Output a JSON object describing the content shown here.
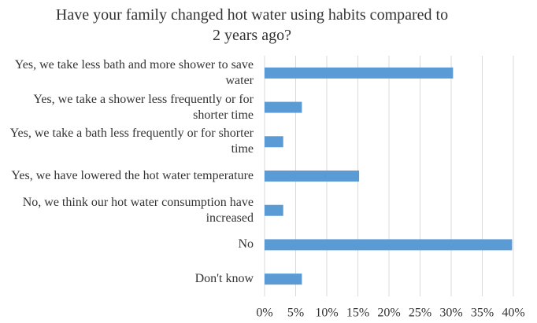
{
  "chart_data": {
    "type": "hbar",
    "title": "Have your family changed hot water using habits compared to 2 years ago?",
    "categories": [
      "Yes, we take less bath and more shower to save water",
      "Yes, we take a shower less frequently or for shorter time",
      "Yes, we take a bath less frequently or for shorter time",
      "Yes, we have lowered the hot water temperature",
      "No, we think our hot water consumption have increased",
      "No",
      "Don't know"
    ],
    "values": [
      30.3,
      6,
      3,
      15.2,
      3,
      39.8,
      6
    ],
    "color": "#5b9bd5",
    "xlim": [
      0,
      40
    ],
    "xticks": [
      {
        "value": 0,
        "label": "0%"
      },
      {
        "value": 5,
        "label": "5%"
      },
      {
        "value": 10,
        "label": "10%"
      },
      {
        "value": 15,
        "label": "15%"
      },
      {
        "value": 20,
        "label": "20%"
      },
      {
        "value": 25,
        "label": "25%"
      },
      {
        "value": 30,
        "label": "30%"
      },
      {
        "value": 35,
        "label": "35%"
      },
      {
        "value": 40,
        "label": "40%"
      }
    ],
    "grid": true
  }
}
